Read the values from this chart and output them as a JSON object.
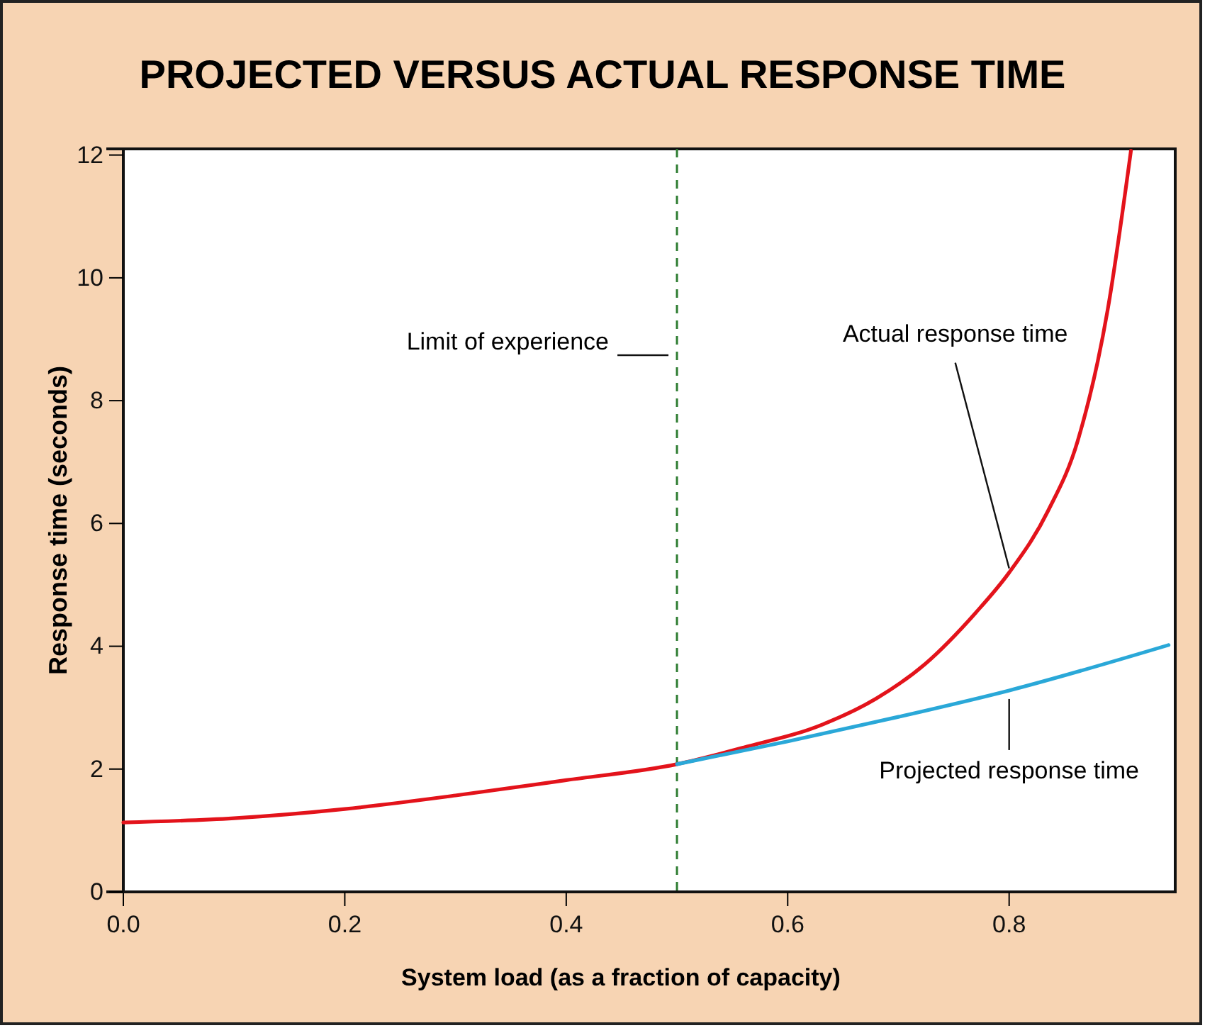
{
  "chart_data": {
    "type": "line",
    "title": "PROJECTED VERSUS ACTUAL RESPONSE TIME",
    "xlabel": "System load (as a fraction of capacity)",
    "ylabel": "Response time (seconds)",
    "xlim": [
      0,
      0.95
    ],
    "ylim": [
      0,
      12.1
    ],
    "xticks": [
      {
        "value": 0,
        "label": "0.0"
      },
      0.2,
      0.4,
      0.6,
      0.8
    ],
    "yticks": [
      0,
      2,
      4,
      6,
      8,
      10,
      12
    ],
    "grid": false,
    "legend": false,
    "marker": "none",
    "line_style": "solid",
    "series": [
      {
        "name": "Actual response time",
        "color": "#e3131b",
        "x": [
          0,
          0.1,
          0.2,
          0.3,
          0.4,
          0.5,
          0.56,
          0.632,
          0.68,
          0.724,
          0.77,
          0.8,
          0.835,
          0.862,
          0.889,
          0.91
        ],
        "values": [
          1.13,
          1.2,
          1.35,
          1.57,
          1.82,
          2.08,
          2.35,
          2.73,
          3.15,
          3.71,
          4.55,
          5.2,
          6.2,
          7.35,
          9.48,
          12.07
        ]
      },
      {
        "name": "Projected response time",
        "color": "#2aa8d8",
        "x": [
          0.5,
          0.6,
          0.7,
          0.8,
          0.944
        ],
        "values": [
          2.08,
          2.45,
          2.85,
          3.28,
          4.02
        ]
      }
    ],
    "ref_lines": [
      {
        "axis": "x",
        "value": 0.5,
        "label": "Limit of experience",
        "color": "#2e7d32",
        "line_style": "dashed"
      }
    ]
  }
}
